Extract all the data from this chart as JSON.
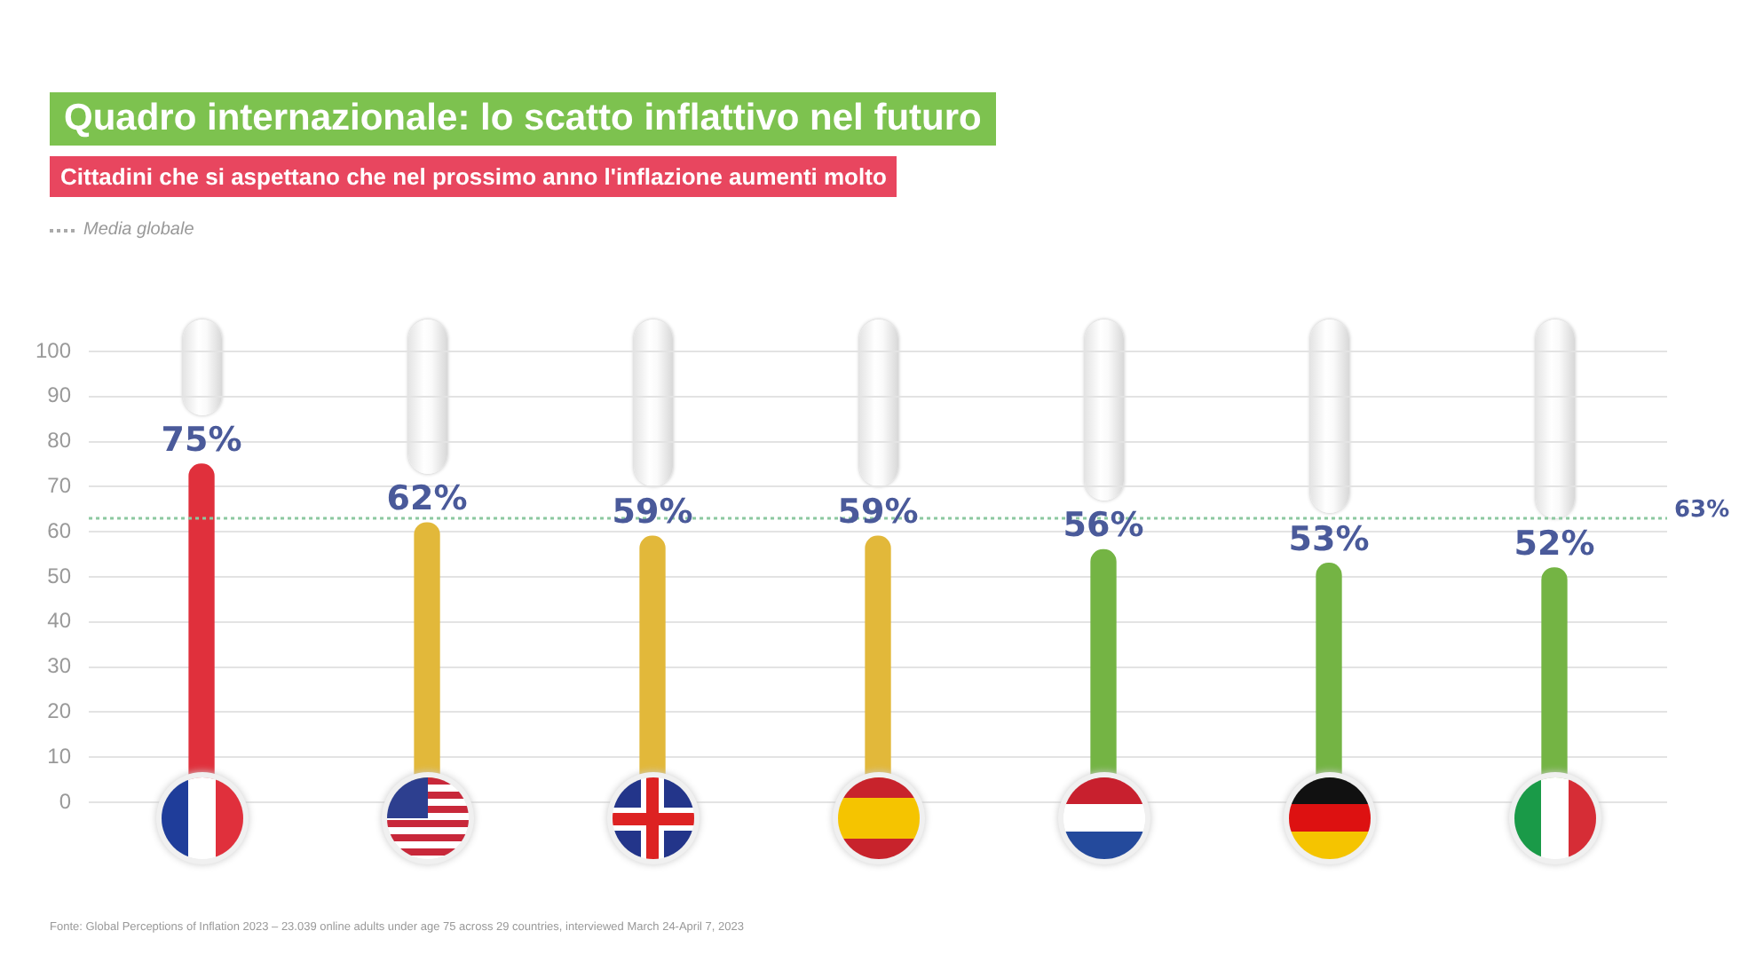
{
  "chart_data": {
    "type": "bar",
    "title": "Quadro internazionale: lo scatto inflattivo nel futuro",
    "subtitle": "Cittadini che si aspettano che nel prossimo anno l'inflazione aumenti molto",
    "categories": [
      null,
      null,
      null,
      null,
      null,
      null,
      null
    ],
    "values": [
      75,
      62,
      59,
      59,
      56,
      53,
      52
    ],
    "colors": [
      "#e0303c",
      "#e2b83a",
      "#e2b83a",
      "#e2b83a",
      "#74b444",
      "#74b444",
      "#74b444"
    ],
    "value_labels": [
      "75%",
      "62%",
      "59%",
      "59%",
      "56%",
      "53%",
      "52%"
    ],
    "ylim": [
      0,
      100
    ],
    "yticks": [
      0,
      10,
      20,
      30,
      40,
      50,
      60,
      70,
      80,
      90,
      100
    ],
    "grid": "y",
    "tick_labels": "y",
    "ref_lines": [
      {
        "axis": "y",
        "value": 63,
        "label": "63%",
        "color": "#8cc8a0",
        "line_style": "dotted"
      }
    ],
    "annotations": [
      "Media globale",
      "Fonte: Global Perceptions of Inflation 2023 – 23.039 online adults under age 75 across 29 countries, interviewed March 24-April 7, 2023"
    ]
  }
}
